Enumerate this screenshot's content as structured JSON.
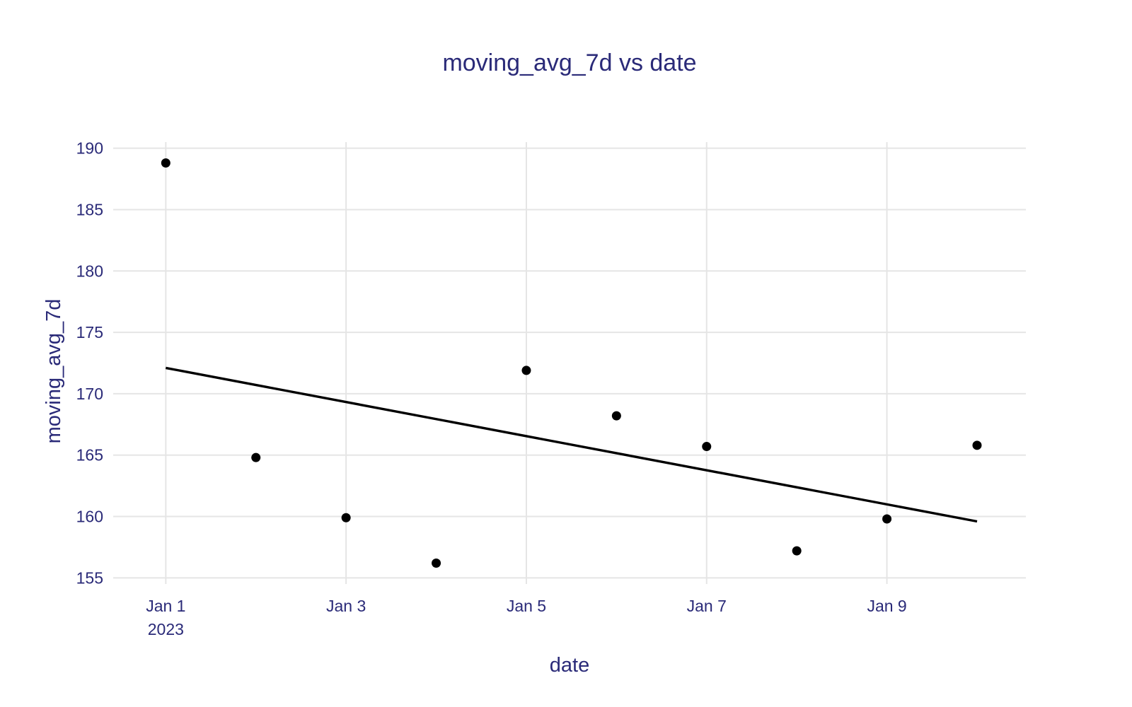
{
  "chart_data": {
    "type": "scatter",
    "title": "moving_avg_7d vs date",
    "xlabel": "date",
    "ylabel": "moving_avg_7d",
    "x": [
      "2023-01-01",
      "2023-01-02",
      "2023-01-03",
      "2023-01-04",
      "2023-01-05",
      "2023-01-06",
      "2023-01-07",
      "2023-01-08",
      "2023-01-09",
      "2023-01-10"
    ],
    "series": [
      {
        "mode": "markers",
        "color": "#000000",
        "values": [
          188.8,
          164.8,
          159.9,
          156.2,
          171.9,
          168.2,
          165.7,
          157.2,
          159.8,
          165.8
        ]
      },
      {
        "mode": "line",
        "color": "#000000",
        "x": [
          "2023-01-01",
          "2023-01-10"
        ],
        "values": [
          172.1,
          159.6
        ]
      }
    ],
    "x_ticks": [
      {
        "value": "2023-01-01",
        "label": "Jan 1",
        "sublabel": "2023"
      },
      {
        "value": "2023-01-03",
        "label": "Jan 3"
      },
      {
        "value": "2023-01-05",
        "label": "Jan 5"
      },
      {
        "value": "2023-01-07",
        "label": "Jan 7"
      },
      {
        "value": "2023-01-09",
        "label": "Jan 9"
      }
    ],
    "y_ticks": [
      155,
      160,
      165,
      170,
      175,
      180,
      185,
      190
    ],
    "xlim": [
      "2022-12-31T10:00",
      "2023-01-10T13:00"
    ],
    "ylim": [
      154.5,
      190.5
    ],
    "grid": true,
    "legend": "none",
    "colors": {
      "text": "#2a2a78",
      "grid": "#e5e5e5",
      "marks": "#000000"
    }
  }
}
